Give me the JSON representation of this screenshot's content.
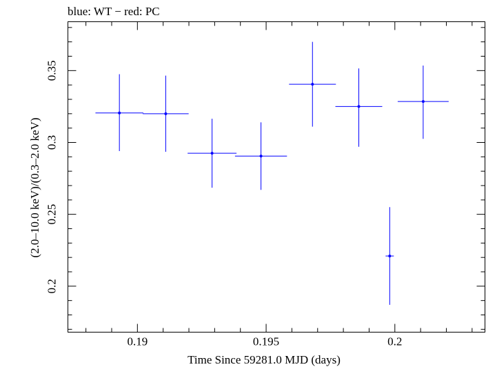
{
  "chart_data": {
    "type": "scatter",
    "title": "blue: WT − red: PC",
    "xlabel": "Time Since 59281.0 MJD (days)",
    "ylabel": "(2.0–10.0 keV)/(0.3–2.0 keV)",
    "xlim": [
      0.1873,
      0.2035
    ],
    "ylim": [
      0.168,
      0.384
    ],
    "x_ticks": [
      0.19,
      0.195,
      0.2
    ],
    "x_tick_labels": [
      "0.19",
      "0.195",
      "0.2"
    ],
    "y_ticks": [
      0.2,
      0.25,
      0.3,
      0.35
    ],
    "y_tick_labels": [
      "0.2",
      "0.25",
      "0.3",
      "0.35"
    ],
    "grid": false,
    "series": [
      {
        "color": "#0000ff",
        "points": [
          {
            "x": 0.1893,
            "y": 0.3205,
            "xerr": 0.00093,
            "yerr_lo": 0.0265,
            "yerr_hi": 0.027
          },
          {
            "x": 0.1911,
            "y": 0.32,
            "xerr": 0.00089,
            "yerr_lo": 0.0265,
            "yerr_hi": 0.0265
          },
          {
            "x": 0.1929,
            "y": 0.2925,
            "xerr": 0.00095,
            "yerr_lo": 0.024,
            "yerr_hi": 0.024
          },
          {
            "x": 0.1948,
            "y": 0.2905,
            "xerr": 0.00101,
            "yerr_lo": 0.0235,
            "yerr_hi": 0.0235
          },
          {
            "x": 0.1968,
            "y": 0.3405,
            "xerr": 0.00091,
            "yerr_lo": 0.0295,
            "yerr_hi": 0.0295
          },
          {
            "x": 0.1986,
            "y": 0.325,
            "xerr": 0.00091,
            "yerr_lo": 0.028,
            "yerr_hi": 0.0265
          },
          {
            "x": 0.1998,
            "y": 0.221,
            "xerr": 0.00016,
            "yerr_lo": 0.034,
            "yerr_hi": 0.034
          },
          {
            "x": 0.2011,
            "y": 0.3285,
            "xerr": 0.00099,
            "yerr_lo": 0.026,
            "yerr_hi": 0.025
          }
        ]
      }
    ]
  }
}
